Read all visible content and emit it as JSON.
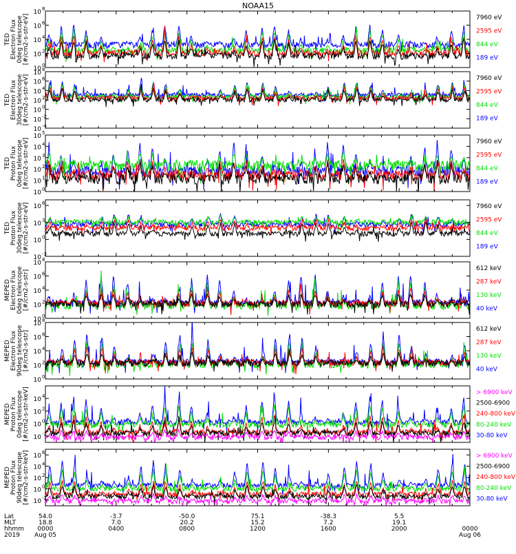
{
  "title": "NOAA15",
  "footer": {
    "row_labels": [
      "Lat",
      "MLT",
      "hhmm",
      "2019"
    ],
    "ticks": [
      {
        "hour": 0,
        "lat": "54.0",
        "mlt": "18.8",
        "hhmm": "0000",
        "date": "Aug 05"
      },
      {
        "hour": 4,
        "lat": "-3.7",
        "mlt": "7.0",
        "hhmm": "0400",
        "date": ""
      },
      {
        "hour": 8,
        "lat": "-50.0",
        "mlt": "20.2",
        "hhmm": "0800",
        "date": ""
      },
      {
        "hour": 12,
        "lat": "75.1",
        "mlt": "15.2",
        "hhmm": "1200",
        "date": ""
      },
      {
        "hour": 16,
        "lat": "-38.3",
        "mlt": "7.2",
        "hhmm": "1600",
        "date": ""
      },
      {
        "hour": 20,
        "lat": "5.5",
        "mlt": "19.1",
        "hhmm": "2000",
        "date": ""
      },
      {
        "hour": 24,
        "lat": "",
        "mlt": "",
        "hhmm": "0000",
        "date": "Aug 06"
      }
    ]
  },
  "chart_data": [
    {
      "type": "line",
      "title": "NOAA15",
      "ylabel": [
        "TED",
        "Electron Flux",
        "0deg telescope",
        "[#/cm2-s-str-eV]"
      ],
      "log_y": true,
      "yticks": [
        {
          "exp": 0,
          "label": "10"
        },
        {
          "exp": 2,
          "label": "10"
        },
        {
          "exp": 4,
          "label": "10"
        },
        {
          "exp": 6,
          "label": "10"
        },
        {
          "exp": 8,
          "label": "10"
        }
      ],
      "ylim_exp": [
        0,
        8
      ],
      "xlim_hours": [
        0,
        24
      ],
      "series": [
        {
          "name": "7960 eV",
          "color": "#000000",
          "base": 1.6,
          "peak": 4.0
        },
        {
          "name": "2595 eV",
          "color": "#ff0000",
          "base": 2.0,
          "peak": 4.6
        },
        {
          "name": "844 eV",
          "color": "#00dd00",
          "base": 2.4,
          "peak": 5.4
        },
        {
          "name": "189 eV",
          "color": "#0000ff",
          "base": 3.2,
          "peak": 6.0
        }
      ]
    },
    {
      "type": "line",
      "ylabel": [
        "TED",
        "Electron Flux",
        "30deg telescope",
        "[#/cm2-s-str-eV]"
      ],
      "log_y": true,
      "yticks": [
        {
          "exp": -4,
          "label": "10"
        },
        {
          "exp": -2,
          "label": "10"
        },
        {
          "exp": 0,
          "label": "10"
        },
        {
          "exp": 2,
          "label": "10"
        },
        {
          "exp": 4,
          "label": "10"
        },
        {
          "exp": 6,
          "label": "10"
        },
        {
          "exp": 8,
          "label": "10"
        }
      ],
      "ylim_exp": [
        -4,
        8
      ],
      "xlim_hours": [
        0,
        24
      ],
      "series": [
        {
          "name": "7960 eV",
          "color": "#000000",
          "base": 2.0,
          "peak": 4.4
        },
        {
          "name": "2595 eV",
          "color": "#ff0000",
          "base": 2.3,
          "peak": 4.8
        },
        {
          "name": "844 eV",
          "color": "#00dd00",
          "base": 2.6,
          "peak": 5.6
        },
        {
          "name": "189 eV",
          "color": "#0000ff",
          "base": 3.0,
          "peak": 6.0
        }
      ]
    },
    {
      "type": "line",
      "ylabel": [
        "TED",
        "Proton Flux",
        "0deg telescope",
        "[#/cm2-s-str-eV]"
      ],
      "log_y": true,
      "yticks": [
        {
          "exp": 0,
          "label": "10"
        },
        {
          "exp": 1,
          "label": "10"
        },
        {
          "exp": 2,
          "label": "10"
        },
        {
          "exp": 3,
          "label": "10"
        },
        {
          "exp": 4,
          "label": "10"
        },
        {
          "exp": 5,
          "label": "10"
        }
      ],
      "ylim_exp": [
        0,
        5
      ],
      "xlim_hours": [
        0,
        24
      ],
      "series": [
        {
          "name": "7960 eV",
          "color": "#000000",
          "base": 1.1,
          "peak": 2.6
        },
        {
          "name": "2595 eV",
          "color": "#ff0000",
          "base": 1.4,
          "peak": 2.9
        },
        {
          "name": "844 eV",
          "color": "#00dd00",
          "base": 2.3,
          "peak": 3.4
        },
        {
          "name": "189 eV",
          "color": "#0000ff",
          "base": 1.8,
          "peak": 4.3
        }
      ]
    },
    {
      "type": "line",
      "ylabel": [
        "TED",
        "Proton Flux",
        "30deg telescope",
        "[#/cm2-s-str-eV]"
      ],
      "log_y": true,
      "yticks": [
        {
          "exp": -3,
          "label": "10"
        },
        {
          "exp": 0,
          "label": "10"
        },
        {
          "exp": 3,
          "label": "10"
        },
        {
          "exp": 6,
          "label": "10"
        }
      ],
      "ylim_exp": [
        -3,
        7
      ],
      "xlim_hours": [
        0,
        24
      ],
      "series": [
        {
          "name": "7960 eV",
          "color": "#000000",
          "base": 1.0,
          "peak": 3.0
        },
        {
          "name": "2595 eV",
          "color": "#ff0000",
          "base": 2.0,
          "peak": 3.6
        },
        {
          "name": "844 eV",
          "color": "#00dd00",
          "base": 3.0,
          "peak": 4.2
        },
        {
          "name": "189 eV",
          "color": "#0000ff",
          "base": 2.6,
          "peak": 4.6
        }
      ]
    },
    {
      "type": "line",
      "ylabel": [
        "MEPED",
        "Electron Flux",
        "0deg telescope",
        "[#/cm2-s-str]"
      ],
      "log_y": true,
      "yticks": [
        {
          "exp": 0,
          "label": "10"
        },
        {
          "exp": 2,
          "label": "10"
        },
        {
          "exp": 4,
          "label": "10"
        },
        {
          "exp": 6,
          "label": "10"
        },
        {
          "exp": 8,
          "label": "10"
        }
      ],
      "ylim_exp": [
        0,
        8
      ],
      "xlim_hours": [
        0,
        24
      ],
      "series": [
        {
          "name": "612 keV",
          "color": "#000000",
          "base": 2.0,
          "peak": 3.6
        },
        {
          "name": "287 keV",
          "color": "#ff0000",
          "base": 2.1,
          "peak": 4.4
        },
        {
          "name": "130 keV",
          "color": "#00dd00",
          "base": 1.7,
          "peak": 5.2
        },
        {
          "name": "40 keV",
          "color": "#0000ff",
          "base": 2.2,
          "peak": 6.4
        }
      ]
    },
    {
      "type": "line",
      "ylabel": [
        "MEPED",
        "Electron Flux",
        "90deg telescope",
        "[#/cm2-s-str]"
      ],
      "log_y": true,
      "yticks": [
        {
          "exp": 0,
          "label": "10"
        },
        {
          "exp": 2,
          "label": "10"
        },
        {
          "exp": 4,
          "label": "10"
        },
        {
          "exp": 6,
          "label": "10"
        },
        {
          "exp": 8,
          "label": "10"
        }
      ],
      "ylim_exp": [
        0,
        8
      ],
      "xlim_hours": [
        0,
        24
      ],
      "series": [
        {
          "name": "612 keV",
          "color": "#000000",
          "base": 2.2,
          "peak": 3.8
        },
        {
          "name": "287 keV",
          "color": "#ff0000",
          "base": 2.3,
          "peak": 4.6
        },
        {
          "name": "130 keV",
          "color": "#00dd00",
          "base": 2.0,
          "peak": 5.4
        },
        {
          "name": "40 keV",
          "color": "#0000ff",
          "base": 2.4,
          "peak": 6.6
        }
      ]
    },
    {
      "type": "line",
      "ylabel": [
        "MEPED",
        "Proton Flux",
        "0deg telescope",
        "[#/cm2-s-str-keV]"
      ],
      "log_y": true,
      "yticks": [
        {
          "exp": -2,
          "label": "10"
        },
        {
          "exp": 0,
          "label": "10"
        },
        {
          "exp": 2,
          "label": "10"
        },
        {
          "exp": 4,
          "label": "10"
        }
      ],
      "ylim_exp": [
        -3,
        6
      ],
      "xlim_hours": [
        0,
        24
      ],
      "series": [
        {
          "name": "> 6900 keV",
          "color": "#ff00ff",
          "base": -2.2,
          "peak": -1.0
        },
        {
          "name": "2500-6900",
          "color": "#000000",
          "base": -1.6,
          "peak": 0.5
        },
        {
          "name": "240-800 keV",
          "color": "#ff0000",
          "base": -1.4,
          "peak": 1.4
        },
        {
          "name": "80-240 keV",
          "color": "#00dd00",
          "base": -0.2,
          "peak": 3.0
        },
        {
          "name": "30-80 keV",
          "color": "#0000ff",
          "base": 0.2,
          "peak": 4.5
        }
      ]
    },
    {
      "type": "line",
      "ylabel": [
        "MEPED",
        "Proton Flux",
        "90deg telescope",
        "[#/cm2-s-str-keV]"
      ],
      "log_y": true,
      "yticks": [
        {
          "exp": -2,
          "label": "10"
        },
        {
          "exp": 0,
          "label": "10"
        },
        {
          "exp": 2,
          "label": "10"
        },
        {
          "exp": 4,
          "label": "10"
        },
        {
          "exp": 6,
          "label": "10"
        }
      ],
      "ylim_exp": [
        -3,
        7
      ],
      "xlim_hours": [
        0,
        24
      ],
      "series": [
        {
          "name": "> 6900 keV",
          "color": "#ff00ff",
          "base": -2.2,
          "peak": -1.0
        },
        {
          "name": "2500-6900",
          "color": "#000000",
          "base": -1.4,
          "peak": 0.8
        },
        {
          "name": "240-800 keV",
          "color": "#ff0000",
          "base": -1.0,
          "peak": 1.6
        },
        {
          "name": "80-240 keV",
          "color": "#00dd00",
          "base": 0.0,
          "peak": 3.4
        },
        {
          "name": "30-80 keV",
          "color": "#0000ff",
          "base": 0.6,
          "peak": 5.0
        }
      ]
    }
  ]
}
